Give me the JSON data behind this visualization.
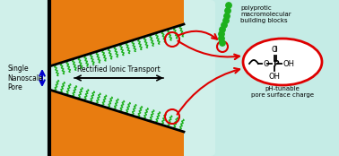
{
  "bg_color": "#c5ece6",
  "orange_color": "#e87c10",
  "green_brush_color": "#1db01d",
  "black_color": "#000000",
  "red_color": "#dd0000",
  "light_cyan": "#d0f0ea",
  "text_single_nanoscale": "Single\nNanoscale\nPore",
  "text_rectified": "Rectified Ionic Transport",
  "text_polyprotic": "polyprotic\nmacromolecular\nbuilding blocks",
  "text_ph_tunable": "pH-tunable\npore surface charge",
  "fig_width": 3.78,
  "fig_height": 1.74,
  "dpi": 100
}
